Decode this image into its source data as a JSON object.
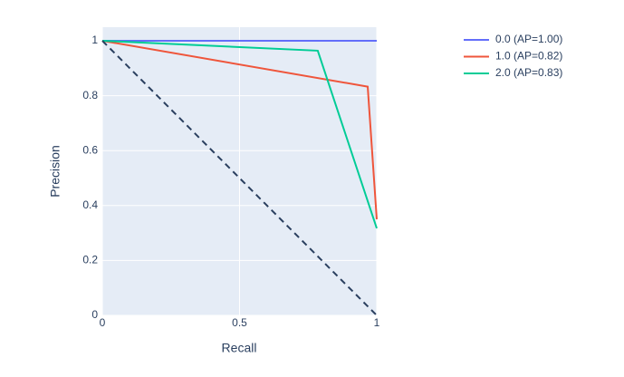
{
  "chart_data": {
    "type": "line",
    "xlabel": "Recall",
    "ylabel": "Precision",
    "xlim": [
      0,
      1
    ],
    "ylim": [
      0,
      1
    ],
    "xticks": [
      0,
      0.5,
      1
    ],
    "yticks": [
      0,
      0.2,
      0.4,
      0.6,
      0.8,
      1
    ],
    "grid": true,
    "legend": "right",
    "series": [
      {
        "name": "0.0 (AP=1.00)",
        "color": "#636efa",
        "x": [
          0,
          1
        ],
        "values": [
          1,
          1
        ]
      },
      {
        "name": "1.0 (AP=0.82)",
        "color": "#ef553b",
        "x": [
          0,
          0.967,
          1
        ],
        "values": [
          1,
          0.833,
          0.35
        ]
      },
      {
        "name": "2.0 (AP=0.83)",
        "color": "#00cc96",
        "x": [
          0,
          0.785,
          1
        ],
        "values": [
          1,
          0.964,
          0.317
        ]
      }
    ],
    "reference_line": {
      "color": "#2a3f5f",
      "dash": "dash",
      "x": [
        0,
        1
      ],
      "values": [
        1,
        0
      ]
    }
  }
}
